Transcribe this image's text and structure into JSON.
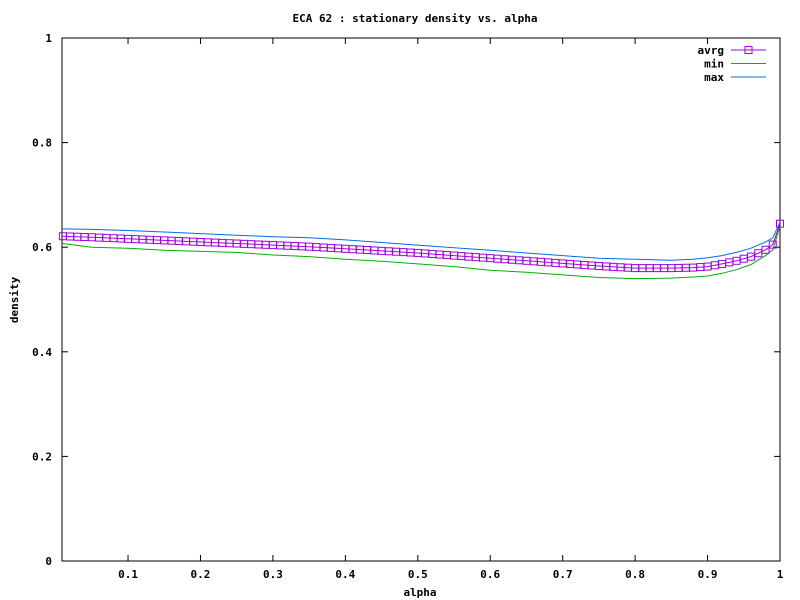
{
  "chart_data": {
    "type": "line",
    "title": "ECA 62 : stationary density vs. alpha",
    "xlabel": "alpha",
    "ylabel": "density",
    "xlim": [
      0.01,
      1.0
    ],
    "ylim": [
      0,
      1
    ],
    "xticks": [
      "0.1",
      "0.2",
      "0.3",
      "0.4",
      "0.5",
      "0.6",
      "0.7",
      "0.8",
      "0.9",
      "1"
    ],
    "yticks": [
      "0",
      "0.2",
      "0.4",
      "0.6",
      "0.8",
      "1"
    ],
    "grid": false,
    "legend_position": "top-right",
    "x": [
      0.01,
      0.05,
      0.1,
      0.15,
      0.2,
      0.25,
      0.3,
      0.35,
      0.4,
      0.45,
      0.5,
      0.55,
      0.6,
      0.65,
      0.7,
      0.75,
      0.8,
      0.85,
      0.88,
      0.9,
      0.92,
      0.94,
      0.96,
      0.98,
      0.99,
      1.0
    ],
    "series": [
      {
        "name": "avrg",
        "color": "#a000e0",
        "marker": "square",
        "values": [
          0.621,
          0.619,
          0.616,
          0.613,
          0.61,
          0.607,
          0.604,
          0.601,
          0.597,
          0.593,
          0.589,
          0.584,
          0.579,
          0.574,
          0.569,
          0.564,
          0.56,
          0.56,
          0.561,
          0.563,
          0.568,
          0.574,
          0.582,
          0.595,
          0.605,
          0.645
        ]
      },
      {
        "name": "min",
        "color": "#00b000",
        "values": [
          0.607,
          0.6,
          0.598,
          0.594,
          0.592,
          0.59,
          0.585,
          0.582,
          0.577,
          0.573,
          0.568,
          0.563,
          0.556,
          0.552,
          0.547,
          0.542,
          0.54,
          0.541,
          0.543,
          0.545,
          0.55,
          0.557,
          0.567,
          0.584,
          0.595,
          0.64
        ]
      },
      {
        "name": "max",
        "color": "#0070e0",
        "values": [
          0.635,
          0.634,
          0.632,
          0.629,
          0.626,
          0.623,
          0.62,
          0.618,
          0.614,
          0.609,
          0.604,
          0.599,
          0.594,
          0.589,
          0.584,
          0.579,
          0.577,
          0.575,
          0.577,
          0.58,
          0.584,
          0.59,
          0.598,
          0.61,
          0.618,
          0.648
        ]
      }
    ]
  }
}
